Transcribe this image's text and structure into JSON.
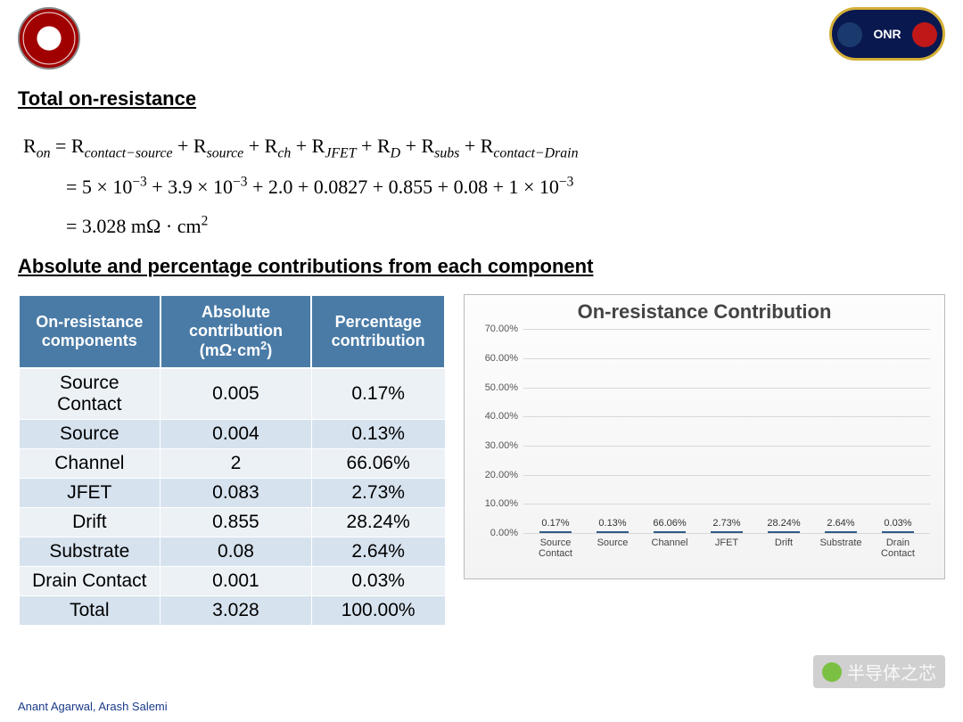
{
  "logos": {
    "left_name": "ohio-state-seal",
    "right_name": "onr-badge",
    "right_text": "ONR"
  },
  "section1_title": "Total on-resistance",
  "equation": {
    "line1_html": "R<sub>on</sub> = R<sub>contact−source</sub> + R<sub>source</sub> + R<sub>ch</sub> + R<sub>JFET</sub> + R<sub>D</sub> + R<sub>subs</sub> + R<sub>contact−Drain</sub>",
    "line2_html": "= 5 × 10<sup>−3</sup> + 3.9 × 10<sup>−3</sup> + 2.0 + 0.0827 + 0.855 + 0.08 + 1 × 10<sup>−3</sup>",
    "line3_html": "= 3.028 mΩ · cm<sup>2</sup>"
  },
  "section2_title": "Absolute and percentage contributions from each component",
  "table": {
    "headers": [
      "On-resistance components",
      "Absolute contribution (mΩ·cm²)",
      "Percentage contribution"
    ],
    "header_bg": "#4a7ba6",
    "header_color": "#ffffff",
    "row_even_bg": "#d6e2ee",
    "row_odd_bg": "#ecf1f6",
    "rows": [
      [
        "Source Contact",
        "0.005",
        "0.17%"
      ],
      [
        "Source",
        "0.004",
        "0.13%"
      ],
      [
        "Channel",
        "2",
        "66.06%"
      ],
      [
        "JFET",
        "0.083",
        "2.73%"
      ],
      [
        "Drift",
        "0.855",
        "28.24%"
      ],
      [
        "Substrate",
        "0.08",
        "2.64%"
      ],
      [
        "Drain Contact",
        "0.001",
        "0.03%"
      ],
      [
        "Total",
        "3.028",
        "100.00%"
      ]
    ]
  },
  "chart": {
    "type": "bar",
    "title": "On-resistance Contribution",
    "title_fontsize": 22,
    "title_color": "#444444",
    "background_gradient": [
      "#fdfdfd",
      "#f3f3f3"
    ],
    "border_color": "#bbbbbb",
    "bar_fill_gradient": [
      "#6fa3d4",
      "#3f77b0"
    ],
    "bar_border": "#2e5a88",
    "grid_color": "#d8d8d8",
    "axis_color": "#999999",
    "label_fontsize": 11,
    "ylim": [
      0,
      70
    ],
    "ytick_step": 10,
    "y_format_suffix": ".00%",
    "categories": [
      "Source Contact",
      "Source",
      "Channel",
      "JFET",
      "Drift",
      "Substrate",
      "Drain Contact"
    ],
    "values": [
      0.17,
      0.13,
      66.06,
      2.73,
      28.24,
      2.64,
      0.03
    ],
    "value_labels": [
      "0.17%",
      "0.13%",
      "66.06%",
      "2.73%",
      "28.24%",
      "2.64%",
      "0.03%"
    ]
  },
  "footer_text": "Anant Agarwal, Arash Salemi",
  "watermark_text": "半导体之芯"
}
